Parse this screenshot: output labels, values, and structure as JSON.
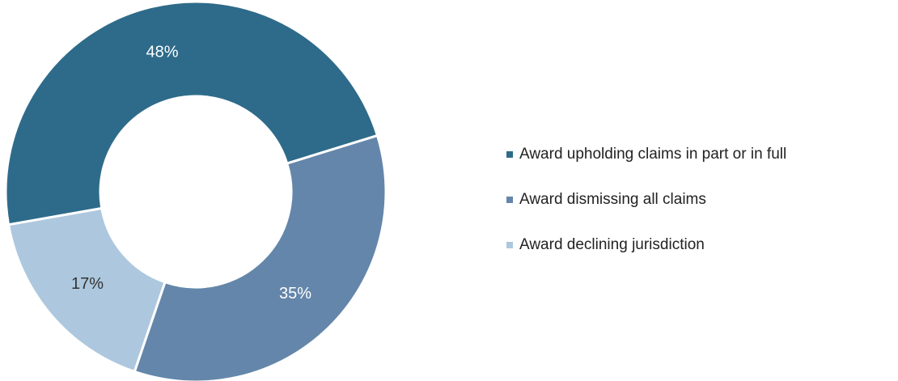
{
  "chart_data": {
    "type": "donut",
    "categories": [
      "Award upholding claims in part or in full",
      "Award dismissing all claims",
      "Award declining jurisdiction"
    ],
    "values": [
      48,
      35,
      17
    ],
    "value_labels": [
      "48%",
      "35%",
      "17%"
    ],
    "colors": [
      "#2e6b8a",
      "#6486aa",
      "#adc8de"
    ],
    "label_colors": [
      "#ffffff",
      "#ffffff",
      "#333333"
    ],
    "legend": "right"
  }
}
